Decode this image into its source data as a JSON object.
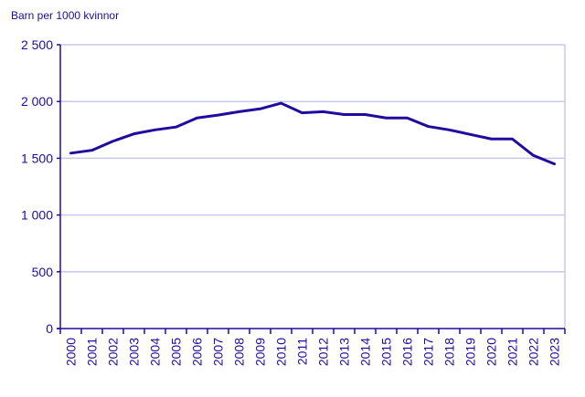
{
  "chart_data": {
    "type": "line",
    "title": "",
    "ylabel": "Barn per 1000 kvinnor",
    "xlabel": "",
    "x": [
      "2000",
      "2001",
      "2002",
      "2003",
      "2004",
      "2005",
      "2006",
      "2007",
      "2008",
      "2009",
      "2010",
      "2011",
      "2012",
      "2013",
      "2014",
      "2015",
      "2016",
      "2017",
      "2018",
      "2019",
      "2020",
      "2021",
      "2022",
      "2023"
    ],
    "y_ticks": [
      {
        "value": 0,
        "label": "0"
      },
      {
        "value": 500,
        "label": "500"
      },
      {
        "value": 1000,
        "label": "1 000"
      },
      {
        "value": 1500,
        "label": "1 500"
      },
      {
        "value": 2000,
        "label": "2 000"
      },
      {
        "value": 2500,
        "label": "2 500"
      }
    ],
    "ylim": [
      0,
      2500
    ],
    "grid": true,
    "series": [
      {
        "values": [
          1545,
          1570,
          1650,
          1715,
          1750,
          1775,
          1855,
          1880,
          1910,
          1935,
          1985,
          1900,
          1910,
          1885,
          1885,
          1855,
          1855,
          1780,
          1750,
          1710,
          1670,
          1670,
          1525,
          1450
        ]
      }
    ],
    "colors": {
      "line": "#1f0b9e",
      "axis": "#1f0b9e",
      "grid": "#c9c6ee",
      "text": "#1f0b9e"
    }
  }
}
